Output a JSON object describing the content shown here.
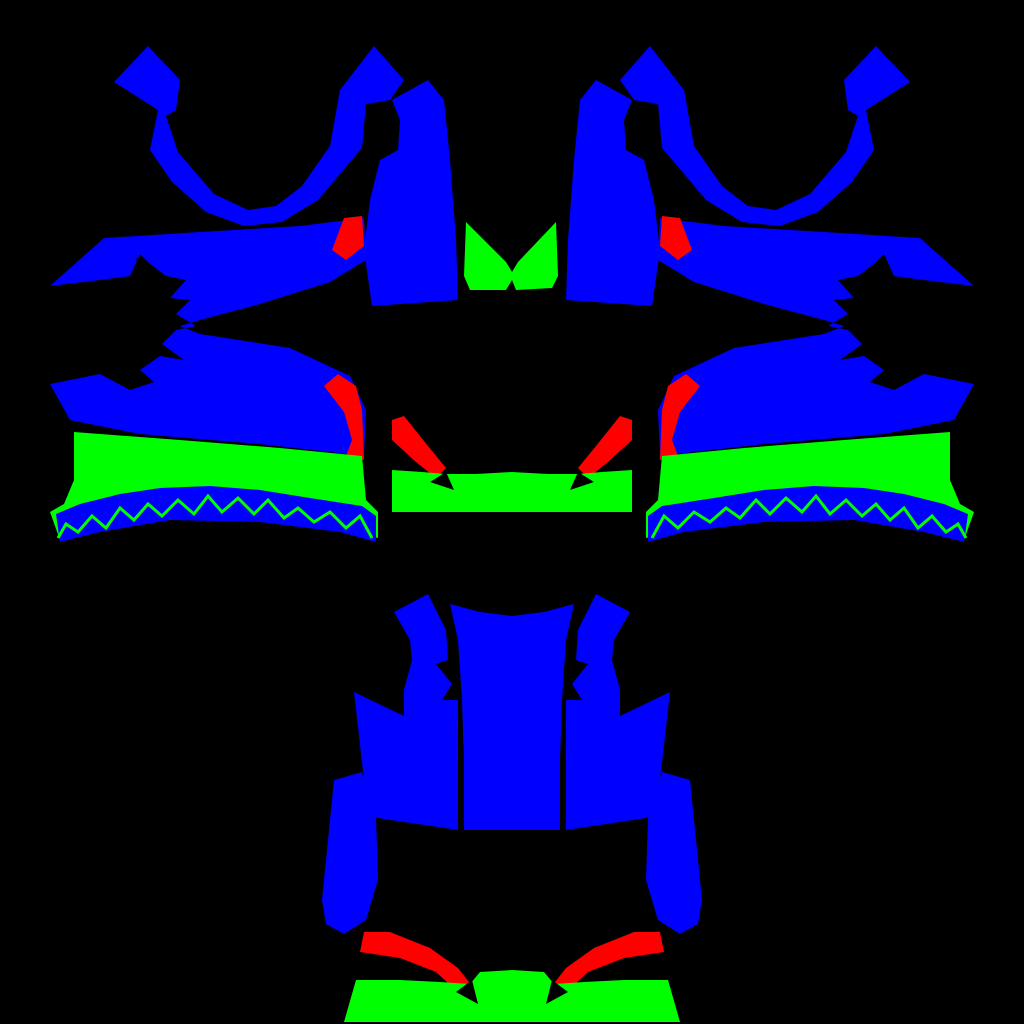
{
  "colors": {
    "background": "#000000",
    "primary": "#0000ff",
    "secondary": "#00ff00",
    "accent": "#ff0000"
  },
  "texture_map": {
    "description_visible_text": "",
    "regions": [
      "left-sleeve",
      "right-sleeve",
      "left-hood-strap",
      "right-hood-strap",
      "left-front-panel",
      "right-front-panel",
      "collar-piece",
      "left-sleeve-cuff",
      "right-sleeve-cuff",
      "center-waistband",
      "body-front-left",
      "body-front-center",
      "body-front-right",
      "body-hem"
    ]
  }
}
